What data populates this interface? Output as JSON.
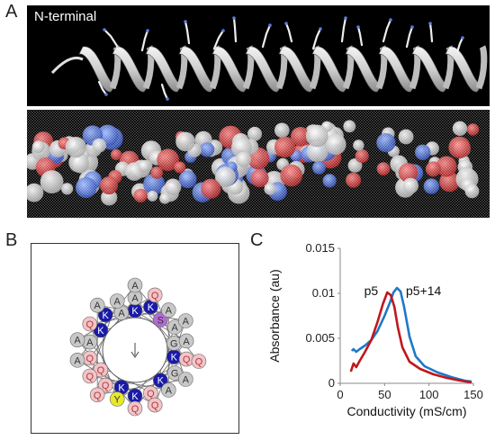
{
  "panels": {
    "a": {
      "letter": "A",
      "label": "N-terminal"
    },
    "b": {
      "letter": "B",
      "wheel_residues": [
        "K",
        "K",
        "K",
        "K",
        "S",
        "K",
        "Q",
        "A",
        "G",
        "K",
        "A",
        "K",
        "G",
        "Q",
        "K",
        "A",
        "Q",
        "Q",
        "A",
        "Q",
        "Y",
        "Q",
        "A",
        "A",
        "Q",
        "A",
        "A",
        "Q",
        "A",
        "Q",
        "A",
        "Q",
        "A",
        "A",
        "Q",
        "A",
        "A",
        "Q"
      ]
    },
    "c": {
      "letter": "C"
    }
  },
  "colors": {
    "blue": "#1f78c8",
    "red": "#c0171c",
    "lys": "#1a1aa8",
    "ser": "#b36bd6",
    "tyr": "#e8e82a",
    "gln": "#f2c4c8",
    "ala": "#c8c8c8"
  },
  "chart_data": {
    "type": "line",
    "xlabel": "Conductivity (mS/cm)",
    "ylabel": "Absorbance (au)",
    "xlim": [
      0,
      150
    ],
    "ylim": [
      0,
      0.015
    ],
    "xticks": [
      "0",
      "50",
      "100",
      "150"
    ],
    "yticks": [
      "0",
      "0.005",
      "0.01",
      "0.015"
    ],
    "series": [
      {
        "name": "p5",
        "color": "#c0171c",
        "points": [
          [
            12,
            0.0013
          ],
          [
            15,
            0.0022
          ],
          [
            18,
            0.0018
          ],
          [
            22,
            0.0025
          ],
          [
            28,
            0.0035
          ],
          [
            35,
            0.0048
          ],
          [
            42,
            0.0068
          ],
          [
            48,
            0.0088
          ],
          [
            53,
            0.0101
          ],
          [
            57,
            0.0098
          ],
          [
            61,
            0.0085
          ],
          [
            65,
            0.0062
          ],
          [
            70,
            0.004
          ],
          [
            78,
            0.0024
          ],
          [
            90,
            0.0016
          ],
          [
            105,
            0.001
          ],
          [
            120,
            0.0006
          ],
          [
            135,
            0.0003
          ],
          [
            148,
            0.0001
          ]
        ]
      },
      {
        "name": "p5+14",
        "color": "#1f78c8",
        "points": [
          [
            13,
            0.0036
          ],
          [
            15,
            0.0038
          ],
          [
            18,
            0.0035
          ],
          [
            22,
            0.0038
          ],
          [
            28,
            0.0042
          ],
          [
            35,
            0.0048
          ],
          [
            42,
            0.0058
          ],
          [
            50,
            0.0075
          ],
          [
            56,
            0.009
          ],
          [
            60,
            0.0101
          ],
          [
            64,
            0.0106
          ],
          [
            68,
            0.0102
          ],
          [
            72,
            0.0085
          ],
          [
            78,
            0.0052
          ],
          [
            85,
            0.003
          ],
          [
            95,
            0.0019
          ],
          [
            110,
            0.0012
          ],
          [
            125,
            0.0007
          ],
          [
            140,
            0.0003
          ],
          [
            148,
            0.0002
          ]
        ]
      }
    ]
  }
}
